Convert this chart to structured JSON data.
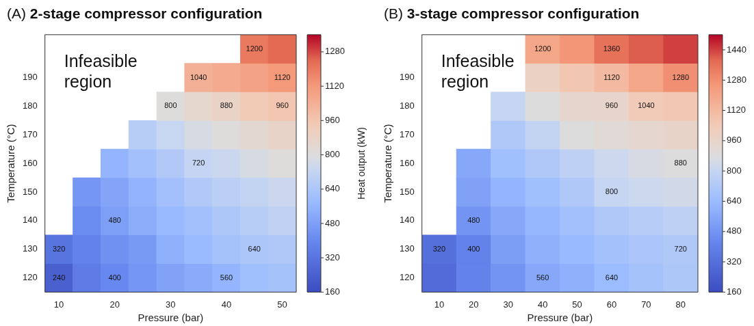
{
  "chart_data": [
    {
      "type": "heatmap",
      "title": "(A) 2-stage compressor configuration",
      "xlabel": "Pressure (bar)",
      "ylabel": "Temperature (°C)",
      "clabel": "Heat output (kW)",
      "categories": [
        "10",
        null,
        "20",
        null,
        "30",
        null,
        "40",
        null,
        "50"
      ],
      "y_categories": [
        null,
        "190",
        "180",
        "170",
        "160",
        "150",
        "140",
        "130",
        "120"
      ],
      "cells": [
        [
          null,
          null,
          null,
          null,
          null,
          null,
          null,
          1200,
          1240
        ],
        [
          null,
          null,
          null,
          null,
          null,
          1040,
          1060,
          1090,
          1120
        ],
        [
          null,
          null,
          null,
          null,
          800,
          850,
          880,
          940,
          960
        ],
        [
          null,
          null,
          null,
          680,
          730,
          775,
          800,
          835,
          870
        ],
        [
          null,
          null,
          560,
          610,
          660,
          720,
          740,
          775,
          800
        ],
        [
          null,
          450,
          500,
          550,
          610,
          660,
          690,
          715,
          740
        ],
        [
          null,
          410,
          480,
          530,
          575,
          610,
          645,
          680,
          705
        ],
        [
          320,
          380,
          430,
          465,
          540,
          580,
          620,
          640,
          650
        ],
        [
          240,
          350,
          400,
          450,
          490,
          525,
          560,
          600,
          620
        ]
      ],
      "cell_labels": [
        [
          null,
          null,
          null,
          null,
          null,
          null,
          null,
          "1200",
          null
        ],
        [
          null,
          null,
          null,
          null,
          null,
          "1040",
          null,
          null,
          "1120"
        ],
        [
          null,
          null,
          null,
          null,
          "800",
          null,
          "880",
          null,
          "960"
        ],
        [
          null,
          null,
          null,
          null,
          null,
          null,
          null,
          null,
          null
        ],
        [
          null,
          null,
          null,
          null,
          null,
          "720",
          null,
          null,
          null
        ],
        [
          null,
          null,
          null,
          null,
          null,
          null,
          null,
          null,
          null
        ],
        [
          null,
          null,
          "480",
          null,
          null,
          null,
          null,
          null,
          null
        ],
        [
          "320",
          null,
          null,
          null,
          null,
          null,
          null,
          "640",
          null
        ],
        [
          "240",
          null,
          "400",
          null,
          null,
          null,
          "560",
          null,
          null
        ]
      ],
      "clim": [
        160,
        1360
      ],
      "cticks": [
        160,
        320,
        480,
        640,
        800,
        960,
        1120,
        1280
      ],
      "annotations": [
        "Infeasible region"
      ]
    },
    {
      "type": "heatmap",
      "title": "(B) 3-stage compressor configuration",
      "xlabel": "Pressure (bar)",
      "ylabel": "Temperature (°C)",
      "categories": [
        "10",
        "20",
        "30",
        "40",
        "50",
        "60",
        "70",
        "80"
      ],
      "y_categories": [
        null,
        "190",
        "180",
        "170",
        "160",
        "150",
        "140",
        "130",
        "120"
      ],
      "cells": [
        [
          null,
          null,
          null,
          1200,
          1260,
          1360,
          1400,
          1440
        ],
        [
          null,
          null,
          null,
          990,
          1060,
          1120,
          1200,
          1280
        ],
        [
          null,
          null,
          800,
          880,
          950,
          960,
          1040,
          1055
        ],
        [
          null,
          null,
          720,
          790,
          880,
          910,
          940,
          970
        ],
        [
          null,
          560,
          660,
          720,
          770,
          820,
          860,
          880
        ],
        [
          null,
          530,
          610,
          660,
          715,
          800,
          820,
          840
        ],
        [
          null,
          480,
          560,
          620,
          670,
          715,
          745,
          770
        ],
        [
          320,
          400,
          520,
          590,
          630,
          675,
          700,
          720
        ],
        [
          300,
          410,
          480,
          560,
          590,
          640,
          680,
          710
        ]
      ],
      "cell_labels": [
        [
          null,
          null,
          null,
          "1200",
          null,
          "1360",
          null,
          null
        ],
        [
          null,
          null,
          null,
          null,
          null,
          "1120",
          null,
          "1280"
        ],
        [
          null,
          null,
          null,
          null,
          null,
          "960",
          "1040",
          null
        ],
        [
          null,
          null,
          null,
          null,
          null,
          null,
          null,
          null
        ],
        [
          null,
          null,
          null,
          null,
          null,
          null,
          null,
          "880"
        ],
        [
          null,
          null,
          null,
          null,
          null,
          "800",
          null,
          null
        ],
        [
          null,
          "480",
          null,
          null,
          null,
          null,
          null,
          null
        ],
        [
          "320",
          "400",
          null,
          null,
          null,
          null,
          null,
          "720"
        ],
        [
          null,
          null,
          null,
          "560",
          null,
          "640",
          null,
          null
        ]
      ],
      "clim": [
        160,
        1520
      ],
      "cticks": [
        160,
        320,
        480,
        640,
        800,
        960,
        1120,
        1280,
        1440
      ],
      "annotations": [
        "Infeasible region"
      ]
    }
  ]
}
